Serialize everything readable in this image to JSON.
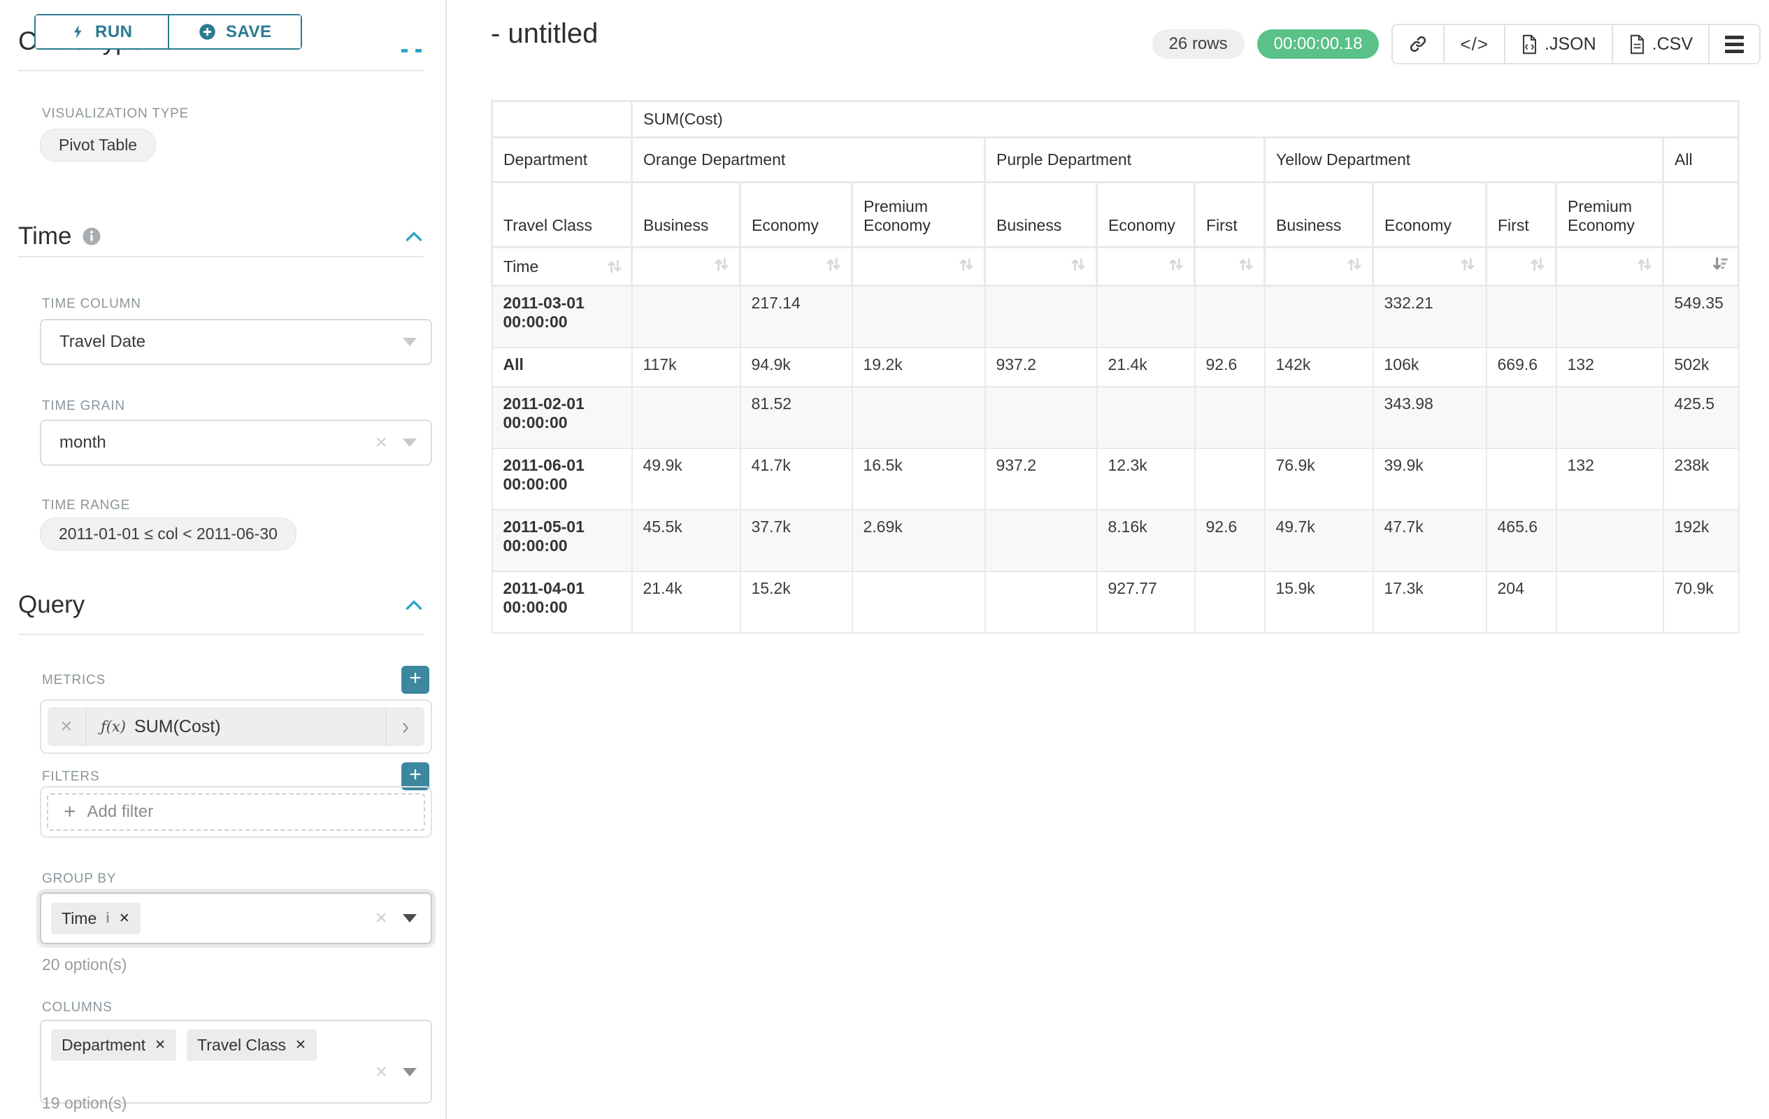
{
  "colors": {
    "accent": "#2b7a90",
    "accent_bright": "#2ba6c6",
    "add_button": "#3d87a0",
    "success_green": "#5ac189"
  },
  "toolbar": {
    "run_label": "RUN",
    "save_label": "SAVE"
  },
  "sidebar": {
    "chart_type_heading": "Chart Type",
    "visualization_type_label": "VISUALIZATION TYPE",
    "visualization_type_value": "Pivot Table",
    "time_section": {
      "title": "Time",
      "time_column_label": "TIME COLUMN",
      "time_column_value": "Travel Date",
      "time_grain_label": "TIME GRAIN",
      "time_grain_value": "month",
      "time_range_label": "TIME RANGE",
      "time_range_value": "2011-01-01 ≤ col < 2011-06-30"
    },
    "query_section": {
      "title": "Query",
      "metrics_label": "METRICS",
      "metric_fx": "ƒ(x)",
      "metric_value": "SUM(Cost)",
      "filters_label": "FILTERS",
      "add_filter_label": "Add filter",
      "group_by_label": "GROUP BY",
      "group_by_chips": [
        {
          "label": "Time"
        }
      ],
      "group_by_hint": "20 option(s)",
      "columns_label": "COLUMNS",
      "columns_chips": [
        {
          "label": "Department"
        },
        {
          "label": "Travel Class"
        }
      ],
      "columns_hint": "19 option(s)"
    }
  },
  "header": {
    "title": "- untitled",
    "row_count": "26 rows",
    "duration": "00:00:00.18",
    "embed_label": "</>",
    "json_label": ".JSON",
    "csv_label": ".CSV"
  },
  "icons": [
    "lightning-icon",
    "plus-circle-icon",
    "info-icon",
    "chevron-up-icon",
    "chevron-down-icon",
    "close-icon",
    "clear-icon",
    "add-icon",
    "link-icon",
    "code-icon",
    "file-json-icon",
    "file-csv-icon",
    "menu-icon",
    "sort-icon",
    "sort-desc-icon",
    "function-icon",
    "expand-caret-icon"
  ],
  "pivot_table": {
    "metric_label": "SUM(Cost)",
    "department_label": "Department",
    "travel_class_label": "Travel Class",
    "time_label": "Time",
    "sort_active_column": "All",
    "groups": [
      {
        "name": "Orange Department",
        "classes": [
          "Business",
          "Economy",
          "Premium Economy"
        ]
      },
      {
        "name": "Purple Department",
        "classes": [
          "Business",
          "Economy",
          "First"
        ]
      },
      {
        "name": "Yellow Department",
        "classes": [
          "Business",
          "Economy",
          "First",
          "Premium Economy"
        ]
      },
      {
        "name": "All",
        "classes": [
          ""
        ]
      }
    ],
    "rows": [
      {
        "label": "2011-03-01 00:00:00",
        "values": [
          "",
          "217.14",
          "",
          "",
          "",
          "",
          "",
          "332.21",
          "",
          "",
          "549.35"
        ]
      },
      {
        "label": "All",
        "values": [
          "117k",
          "94.9k",
          "19.2k",
          "937.2",
          "21.4k",
          "92.6",
          "142k",
          "106k",
          "669.6",
          "132",
          "502k"
        ]
      },
      {
        "label": "2011-02-01 00:00:00",
        "values": [
          "",
          "81.52",
          "",
          "",
          "",
          "",
          "",
          "343.98",
          "",
          "",
          "425.5"
        ]
      },
      {
        "label": "2011-06-01 00:00:00",
        "values": [
          "49.9k",
          "41.7k",
          "16.5k",
          "937.2",
          "12.3k",
          "",
          "76.9k",
          "39.9k",
          "",
          "132",
          "238k"
        ]
      },
      {
        "label": "2011-05-01 00:00:00",
        "values": [
          "45.5k",
          "37.7k",
          "2.69k",
          "",
          "8.16k",
          "92.6",
          "49.7k",
          "47.7k",
          "465.6",
          "",
          "192k"
        ]
      },
      {
        "label": "2011-04-01 00:00:00",
        "values": [
          "21.4k",
          "15.2k",
          "",
          "",
          "927.77",
          "",
          "15.9k",
          "17.3k",
          "204",
          "",
          "70.9k"
        ]
      }
    ]
  }
}
